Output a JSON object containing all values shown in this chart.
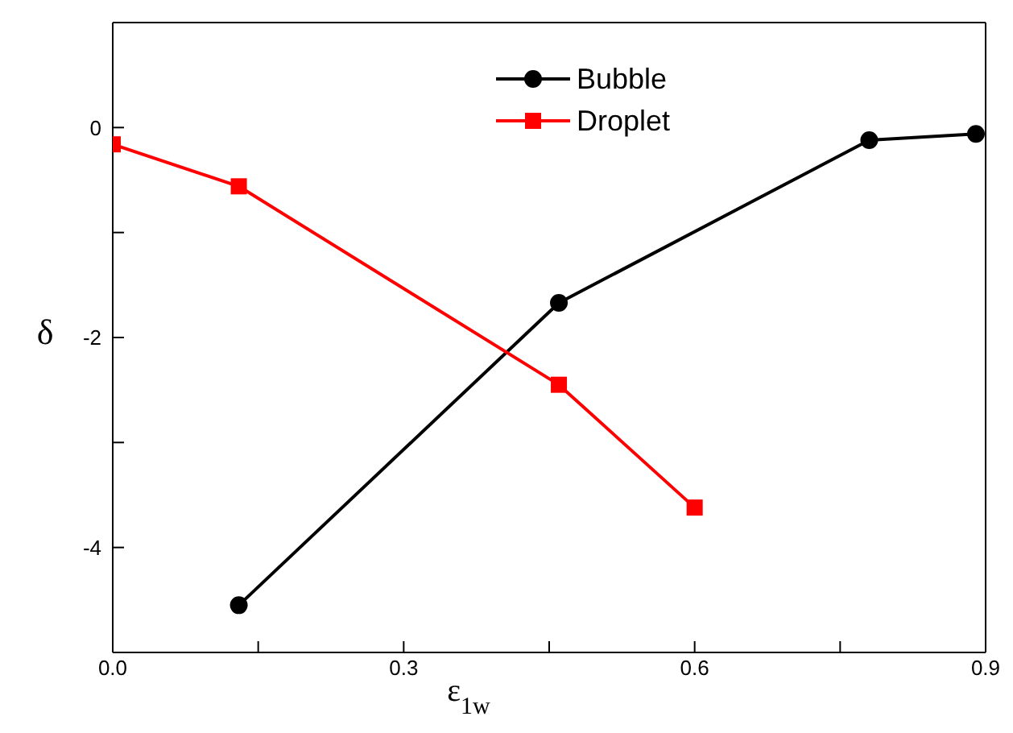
{
  "chart_data": {
    "type": "line",
    "xlabel": "ε$_{1w}$",
    "ylabel": "δ",
    "xlim": [
      0,
      0.9
    ],
    "xticks": [
      {
        "value": 0,
        "label": "0.0"
      },
      {
        "value": 0.15,
        "label": null
      },
      0.3,
      {
        "value": 0.45,
        "label": null
      },
      0.6,
      {
        "value": 0.75,
        "label": null
      },
      0.9
    ],
    "ylim": [
      -5,
      1
    ],
    "yticks": [
      {
        "value": -5,
        "label": null
      },
      -4,
      {
        "value": -3,
        "label": null
      },
      -2,
      {
        "value": -1,
        "label": null
      },
      0,
      {
        "value": 1,
        "label": null
      }
    ],
    "legend": "top",
    "line_style": "solid",
    "series": [
      {
        "name": "Bubble",
        "color": "#000000",
        "marker": "circle",
        "x": [
          0.13,
          0.46,
          0.78,
          0.89
        ],
        "values": [
          -4.55,
          -1.67,
          -0.12,
          -0.06
        ]
      },
      {
        "name": "Droplet",
        "color": "#ff0000",
        "marker": "square",
        "x": [
          0,
          0.13,
          0.46,
          0.6
        ],
        "values": [
          -0.16,
          -0.56,
          -2.45,
          -3.62
        ]
      }
    ]
  }
}
